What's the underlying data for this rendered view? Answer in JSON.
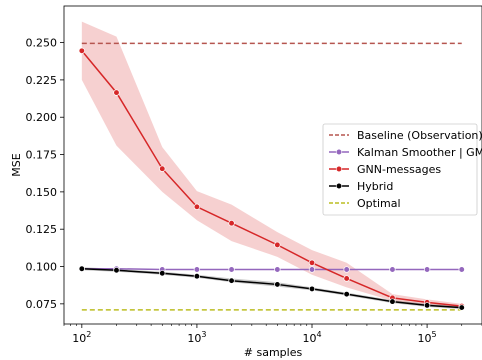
{
  "chart_data": {
    "type": "line",
    "title": "",
    "xlabel": "# samples",
    "ylabel": "MSE",
    "x_scale": "log",
    "xlim": [
      70,
      300000
    ],
    "ylim": [
      0.0615,
      0.2745
    ],
    "grid": false,
    "legend_position": "center-right",
    "x_ticks": [
      {
        "value": 100,
        "base": "10",
        "exp": "2"
      },
      {
        "value": 1000,
        "base": "10",
        "exp": "3"
      },
      {
        "value": 10000,
        "base": "10",
        "exp": "4"
      },
      {
        "value": 100000,
        "base": "10",
        "exp": "5"
      }
    ],
    "y_ticks": [
      {
        "value": 0.075,
        "label": "0.075"
      },
      {
        "value": 0.1,
        "label": "0.100"
      },
      {
        "value": 0.125,
        "label": "0.125"
      },
      {
        "value": 0.15,
        "label": "0.150"
      },
      {
        "value": 0.175,
        "label": "0.175"
      },
      {
        "value": 0.2,
        "label": "0.200"
      },
      {
        "value": 0.225,
        "label": "0.225"
      },
      {
        "value": 0.25,
        "label": "0.250"
      }
    ],
    "series": [
      {
        "name": "Baseline (Observation)",
        "color": "#b5554f",
        "style": "dashed",
        "marker": false,
        "x": [
          100,
          200000
        ],
        "y": [
          0.2495,
          0.2495
        ]
      },
      {
        "name": "Kalman Smoother | GM",
        "color": "#9467bd",
        "style": "solid",
        "marker": true,
        "x": [
          100,
          200,
          500,
          1000,
          2000,
          5000,
          10000,
          20000,
          50000,
          100000,
          200000
        ],
        "y": [
          0.0985,
          0.0985,
          0.098,
          0.098,
          0.098,
          0.098,
          0.098,
          0.098,
          0.098,
          0.098,
          0.098
        ]
      },
      {
        "name": "GNN-messages",
        "color": "#d62728",
        "style": "solid",
        "marker": true,
        "x": [
          100,
          200,
          500,
          1000,
          2000,
          5000,
          10000,
          20000,
          50000,
          100000,
          200000
        ],
        "y": [
          0.2445,
          0.2165,
          0.1655,
          0.14,
          0.129,
          0.1145,
          0.1025,
          0.092,
          0.079,
          0.076,
          0.0735
        ],
        "band_low": [
          0.225,
          0.181,
          0.15,
          0.131,
          0.117,
          0.1065,
          0.0945,
          0.086,
          0.077,
          0.0745,
          0.0725
        ],
        "band_high": [
          0.264,
          0.254,
          0.18,
          0.1505,
          0.1415,
          0.123,
          0.111,
          0.1025,
          0.0815,
          0.078,
          0.075
        ]
      },
      {
        "name": "Hybrid",
        "color": "#000000",
        "style": "solid",
        "marker": true,
        "x": [
          100,
          200,
          500,
          1000,
          2000,
          5000,
          10000,
          20000,
          50000,
          100000,
          200000
        ],
        "y": [
          0.0985,
          0.0975,
          0.0955,
          0.0935,
          0.0905,
          0.088,
          0.085,
          0.0815,
          0.0765,
          0.074,
          0.0725
        ],
        "band_low": [
          0.0975,
          0.0965,
          0.0945,
          0.0925,
          0.0895,
          0.0865,
          0.084,
          0.0805,
          0.0755,
          0.073,
          0.0715
        ],
        "band_high": [
          0.0995,
          0.0985,
          0.0965,
          0.0945,
          0.092,
          0.0895,
          0.086,
          0.0825,
          0.0775,
          0.075,
          0.0735
        ]
      },
      {
        "name": "Optimal",
        "color": "#bcbd22",
        "style": "dashed",
        "marker": false,
        "x": [
          100,
          200000
        ],
        "y": [
          0.071,
          0.071
        ]
      }
    ]
  }
}
